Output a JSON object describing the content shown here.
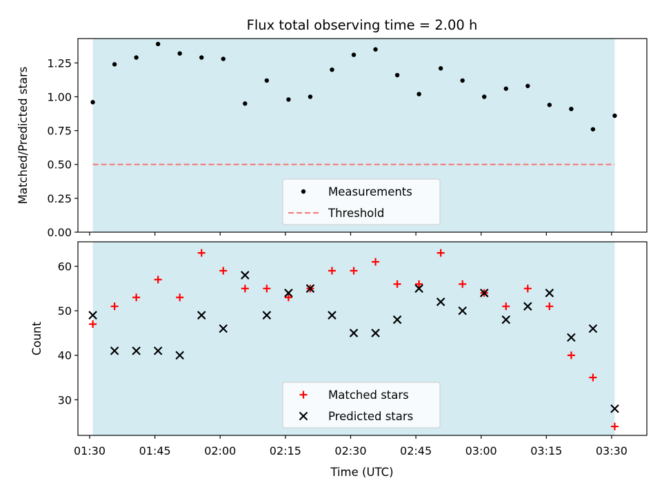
{
  "title": "Flux total observing time = 2.00 h",
  "xlabel": "Time (UTC)",
  "x_ticks": [
    "01:30",
    "01:45",
    "02:00",
    "02:15",
    "02:30",
    "02:45",
    "03:00",
    "03:15",
    "03:30"
  ],
  "colors": {
    "span": "#add8e6",
    "measure": "#000000",
    "threshold": "#f08080",
    "matched": "#ff0000",
    "predicted": "#000000"
  },
  "chart_data": [
    {
      "type": "scatter",
      "ylabel": "Matched/Predicted stars",
      "ylim": [
        0,
        1.43
      ],
      "y_ticks": [
        "0.00",
        "0.25",
        "0.50",
        "0.75",
        "1.00",
        "1.25"
      ],
      "y_tick_values": [
        0,
        0.25,
        0.5,
        0.75,
        1.0,
        1.25
      ],
      "x_unit": "minutes after 01:30 UTC",
      "xlim": [
        -2.7,
        128.1
      ],
      "observing_span": [
        0.72,
        120.72
      ],
      "legend_position": "lower center",
      "series": [
        {
          "name": "Measurements",
          "marker": "dot",
          "x": [
            0.72,
            5.72,
            10.72,
            15.72,
            20.72,
            25.72,
            30.72,
            35.72,
            40.72,
            45.72,
            50.72,
            55.72,
            60.72,
            65.72,
            70.72,
            75.72,
            80.72,
            85.72,
            90.72,
            95.72,
            100.72,
            105.72,
            110.72,
            115.72,
            120.72
          ],
          "y": [
            0.96,
            1.24,
            1.29,
            1.39,
            1.32,
            1.29,
            1.28,
            0.95,
            1.12,
            0.98,
            1.0,
            1.2,
            1.31,
            1.35,
            1.16,
            1.02,
            1.21,
            1.12,
            1.0,
            1.06,
            1.08,
            0.94,
            0.91,
            0.76,
            0.86
          ]
        }
      ],
      "threshold": {
        "name": "Threshold",
        "y": 0.5
      }
    },
    {
      "type": "scatter",
      "ylabel": "Count",
      "ylim": [
        22,
        65.5
      ],
      "y_ticks": [
        "30",
        "40",
        "50",
        "60"
      ],
      "y_tick_values": [
        30,
        40,
        50,
        60
      ],
      "x_unit": "minutes after 01:30 UTC",
      "xlim": [
        -2.7,
        128.1
      ],
      "observing_span": [
        0.72,
        120.72
      ],
      "legend_position": "lower center",
      "series": [
        {
          "name": "Matched stars",
          "marker": "plus",
          "x": [
            0.72,
            5.72,
            10.72,
            15.72,
            20.72,
            25.72,
            30.72,
            35.72,
            40.72,
            45.72,
            50.72,
            55.72,
            60.72,
            65.72,
            70.72,
            75.72,
            80.72,
            85.72,
            90.72,
            95.72,
            100.72,
            105.72,
            110.72,
            115.72,
            120.72
          ],
          "y": [
            47,
            51,
            53,
            57,
            53,
            63,
            59,
            55,
            55,
            53,
            55,
            59,
            59,
            61,
            56,
            56,
            63,
            56,
            54,
            51,
            55,
            51,
            40,
            35,
            24
          ]
        },
        {
          "name": "Predicted stars",
          "marker": "x",
          "x": [
            0.72,
            5.72,
            10.72,
            15.72,
            20.72,
            25.72,
            30.72,
            35.72,
            40.72,
            45.72,
            50.72,
            55.72,
            60.72,
            65.72,
            70.72,
            75.72,
            80.72,
            85.72,
            90.72,
            95.72,
            100.72,
            105.72,
            110.72,
            115.72,
            120.72
          ],
          "y": [
            49,
            41,
            41,
            41,
            40,
            49,
            46,
            58,
            49,
            54,
            55,
            49,
            45,
            45,
            48,
            55,
            52,
            50,
            54,
            48,
            51,
            54,
            44,
            46,
            28
          ]
        }
      ]
    }
  ]
}
